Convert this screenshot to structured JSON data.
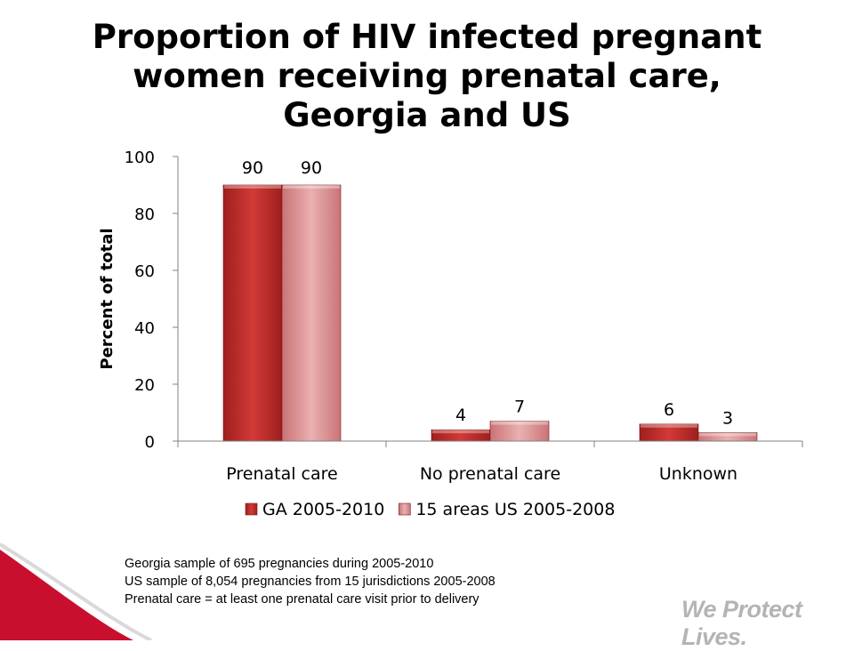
{
  "slide": {
    "title_lines": [
      "Proportion of HIV infected pregnant",
      "women receiving prenatal care,",
      "Georgia and US"
    ],
    "notes": [
      "Georgia sample of 695 pregnancies during 2005-2010",
      "US sample of 8,054 pregnancies from 15 jurisdictions 2005-2008",
      "Prenatal care = at least one prenatal care visit prior to delivery"
    ],
    "tagline": "We Protect Lives.",
    "accent_color": "#d7121e"
  },
  "chart_data": {
    "type": "bar",
    "categories": [
      "Prenatal care",
      "No prenatal care",
      "Unknown"
    ],
    "series": [
      {
        "name": "GA 2005-2010",
        "values": [
          90,
          4,
          6
        ],
        "color": "#c0302e"
      },
      {
        "name": "15 areas US 2005-2008",
        "values": [
          90,
          7,
          3
        ],
        "color": "#d98a8c"
      }
    ],
    "ylabel": "Percent of total",
    "xlabel": "",
    "ylim": [
      0,
      100
    ],
    "yticks": [
      0,
      20,
      40,
      60,
      80,
      100
    ],
    "grid": false,
    "legend": "bottom",
    "data_labels": true
  }
}
